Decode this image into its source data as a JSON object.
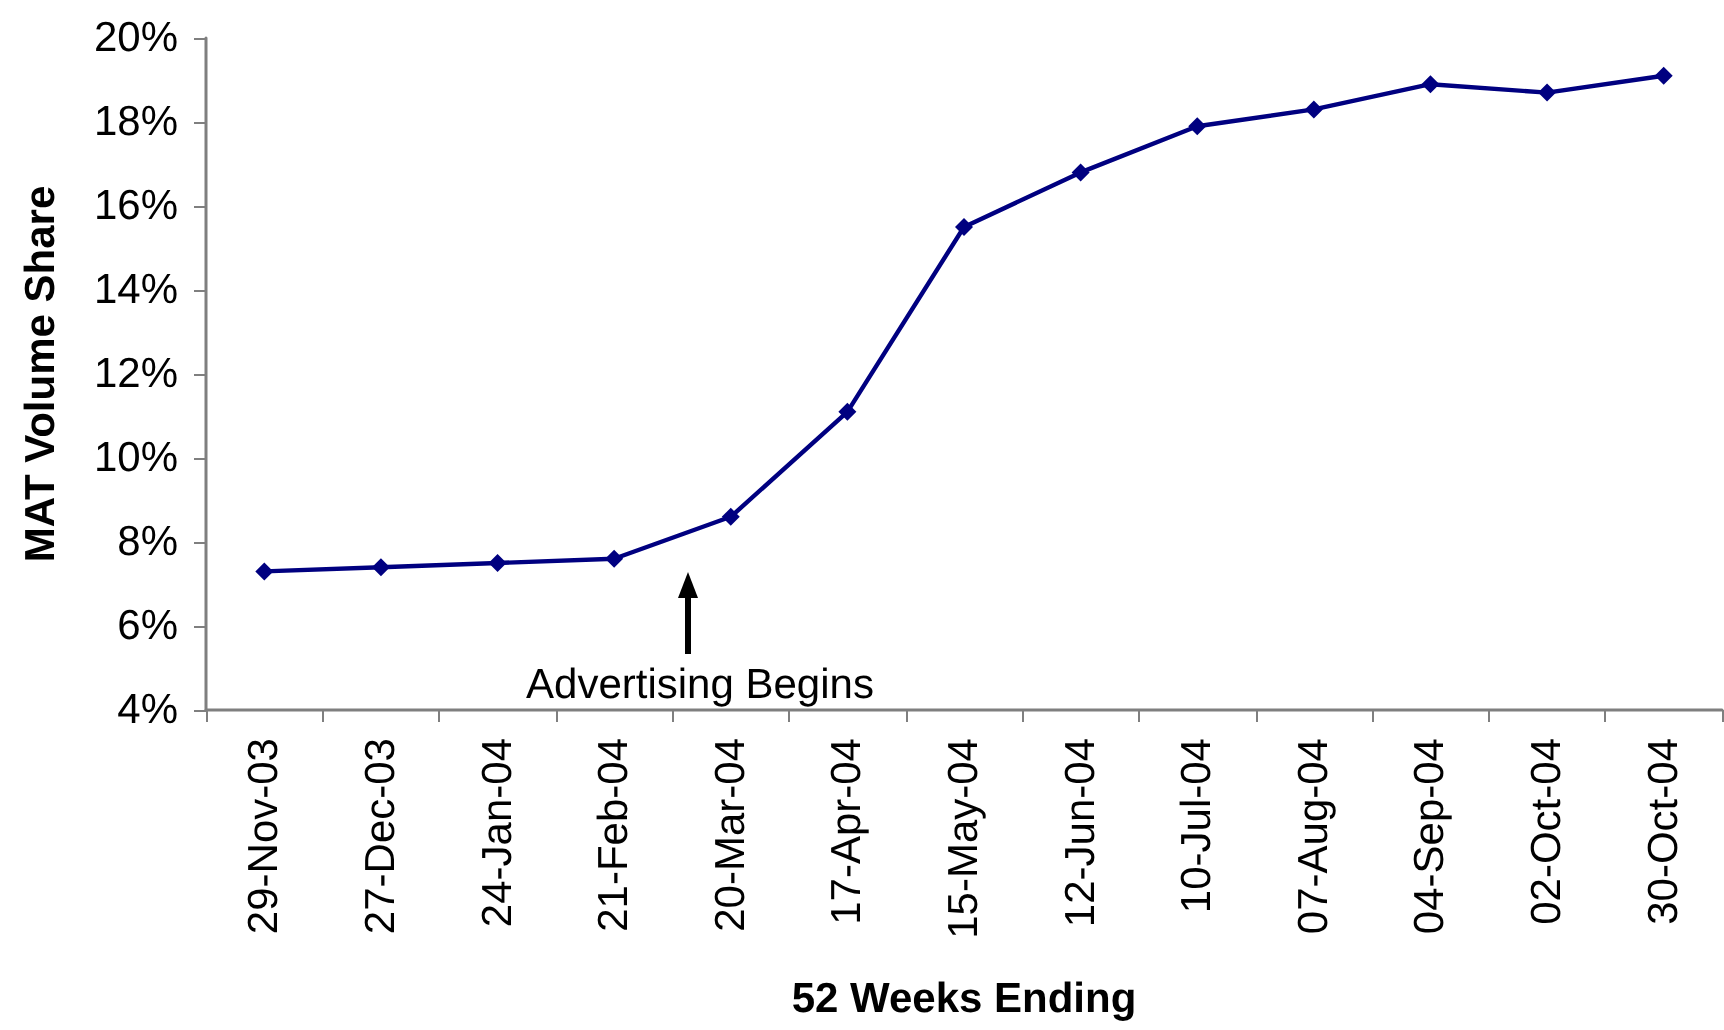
{
  "chart_data": {
    "type": "line",
    "xlabel": "52 Weeks Ending",
    "ylabel": "MAT Volume Share",
    "categories": [
      "29-Nov-03",
      "27-Dec-03",
      "24-Jan-04",
      "21-Feb-04",
      "20-Mar-04",
      "17-Apr-04",
      "15-May-04",
      "12-Jun-04",
      "10-Jul-04",
      "07-Aug-04",
      "04-Sep-04",
      "02-Oct-04",
      "30-Oct-04"
    ],
    "values": [
      7.3,
      7.4,
      7.5,
      7.6,
      8.6,
      11.1,
      15.5,
      16.8,
      17.9,
      18.3,
      18.9,
      18.7,
      19.1
    ],
    "color": "#000080",
    "ylim": [
      4,
      20
    ],
    "yticks": [
      {
        "value": 4,
        "label": "4%"
      },
      {
        "value": 6,
        "label": "6%"
      },
      {
        "value": 8,
        "label": "8%"
      },
      {
        "value": 10,
        "label": "10%"
      },
      {
        "value": 12,
        "label": "12%"
      },
      {
        "value": 14,
        "label": "14%"
      },
      {
        "value": 16,
        "label": "16%"
      },
      {
        "value": 18,
        "label": "18%"
      },
      {
        "value": 20,
        "label": "20%"
      }
    ],
    "marker": "diamond",
    "line_style": "solid",
    "annotations": [
      "Advertising Begins"
    ]
  }
}
